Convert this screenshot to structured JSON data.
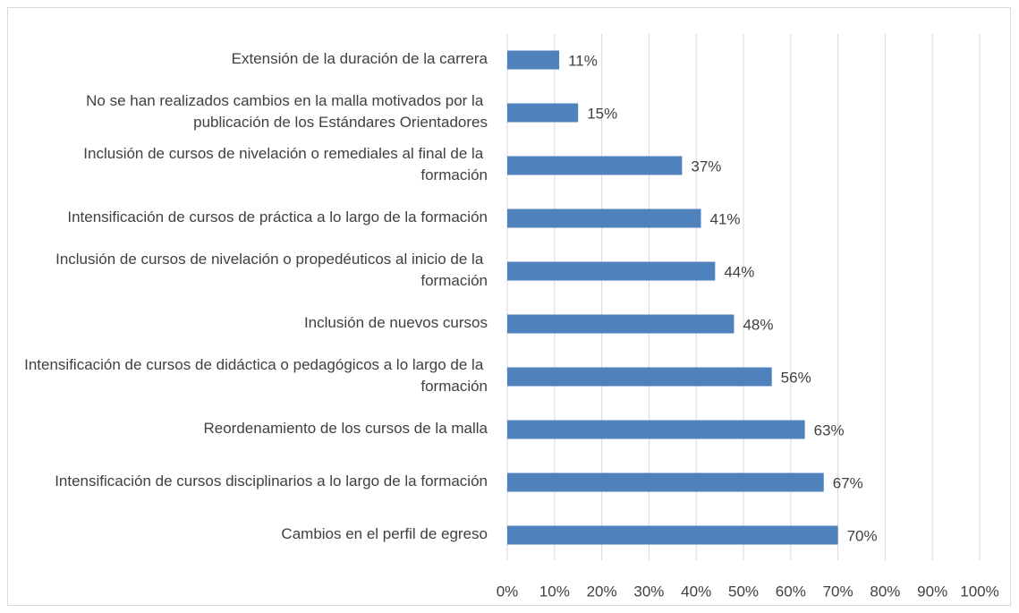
{
  "chart_data": {
    "type": "bar",
    "orientation": "horizontal",
    "categories": [
      "Extensión de la duración de la carrera",
      "No se han realizados cambios en la malla motivados por la publicación de los Estándares Orientadores",
      "Inclusión de cursos de nivelación o remediales al final de la formación",
      "Intensificación de cursos de práctica a lo largo de la formación",
      "Inclusión de cursos de nivelación o propedéuticos al inicio de la formación",
      "Inclusión de nuevos cursos",
      "Intensificación de cursos de didáctica o pedagógicos a lo largo de la formación",
      "Reordenamiento de los cursos de la malla",
      "Intensificación de cursos disciplinarios a lo largo de la formación",
      "Cambios en el perfil de egreso"
    ],
    "values": [
      11,
      15,
      37,
      41,
      44,
      48,
      56,
      63,
      67,
      70
    ],
    "value_labels": [
      "11%",
      "15%",
      "37%",
      "41%",
      "44%",
      "48%",
      "56%",
      "63%",
      "67%",
      "70%"
    ],
    "color": "#4f81bd",
    "xlim": [
      0,
      100
    ],
    "xticks": [
      {
        "value": 0,
        "label": "0%"
      },
      {
        "value": 10,
        "label": "10%"
      },
      {
        "value": 20,
        "label": "20%"
      },
      {
        "value": 30,
        "label": "30%"
      },
      {
        "value": 40,
        "label": "40%"
      },
      {
        "value": 50,
        "label": "50%"
      },
      {
        "value": 60,
        "label": "60%"
      },
      {
        "value": 70,
        "label": "70%"
      },
      {
        "value": 80,
        "label": "80%"
      },
      {
        "value": 90,
        "label": "90%"
      },
      {
        "value": 100,
        "label": "100%"
      }
    ],
    "grid": true
  }
}
